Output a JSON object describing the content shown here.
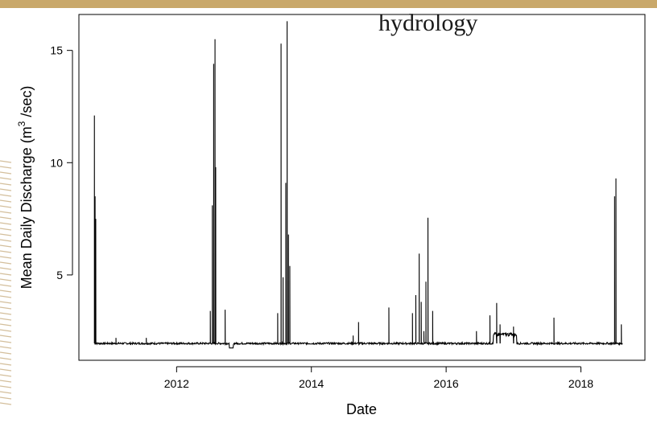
{
  "slide": {
    "title_fragment": "hydrology",
    "colors": {
      "background": "#ffffff",
      "banner": "#c9a86a",
      "decor": "#b08a4a",
      "line": "#000000"
    }
  },
  "chart_data": {
    "type": "line",
    "title": "",
    "xlabel": "Date",
    "ylabel_prefix": "Mean Daily Discharge (m",
    "ylabel_sup": "3",
    "ylabel_suffix": " /sec)",
    "x_unit": "year",
    "xlim": [
      2010.55,
      2018.95
    ],
    "ylim": [
      1.2,
      16.6
    ],
    "x_ticks": [
      2012,
      2014,
      2016,
      2018
    ],
    "x_tick_labels": [
      "2012",
      "2014",
      "2016",
      "2018"
    ],
    "y_ticks": [
      5,
      10,
      15
    ],
    "y_tick_labels": [
      "5",
      "10",
      "15"
    ],
    "grid": false,
    "legend": "none",
    "baseline": 1.95,
    "series": [
      {
        "values": [
          [
            2010.78,
            12.1
          ],
          [
            2010.79,
            8.5
          ],
          [
            2010.8,
            7.5
          ],
          [
            2011.1,
            2.2
          ],
          [
            2011.55,
            2.2
          ],
          [
            2012.5,
            3.4
          ],
          [
            2012.53,
            8.1
          ],
          [
            2012.55,
            14.4
          ],
          [
            2012.57,
            15.5
          ],
          [
            2012.58,
            9.8
          ],
          [
            2012.72,
            3.45
          ],
          [
            2013.5,
            3.3
          ],
          [
            2013.55,
            15.3
          ],
          [
            2013.58,
            4.9
          ],
          [
            2013.62,
            9.1
          ],
          [
            2013.64,
            16.3
          ],
          [
            2013.66,
            6.8
          ],
          [
            2013.68,
            5.4
          ],
          [
            2014.62,
            2.3
          ],
          [
            2014.7,
            2.9
          ],
          [
            2015.15,
            3.55
          ],
          [
            2015.5,
            3.3
          ],
          [
            2015.55,
            4.1
          ],
          [
            2015.6,
            5.95
          ],
          [
            2015.63,
            3.8
          ],
          [
            2015.67,
            2.5
          ],
          [
            2015.7,
            4.7
          ],
          [
            2015.73,
            7.55
          ],
          [
            2015.8,
            3.4
          ],
          [
            2016.45,
            2.5
          ],
          [
            2016.65,
            3.2
          ],
          [
            2016.75,
            3.75
          ],
          [
            2016.8,
            2.8
          ],
          [
            2017.0,
            2.7
          ],
          [
            2017.6,
            3.1
          ],
          [
            2018.5,
            8.5
          ],
          [
            2018.52,
            9.3
          ],
          [
            2018.6,
            2.8
          ]
        ]
      }
    ]
  }
}
